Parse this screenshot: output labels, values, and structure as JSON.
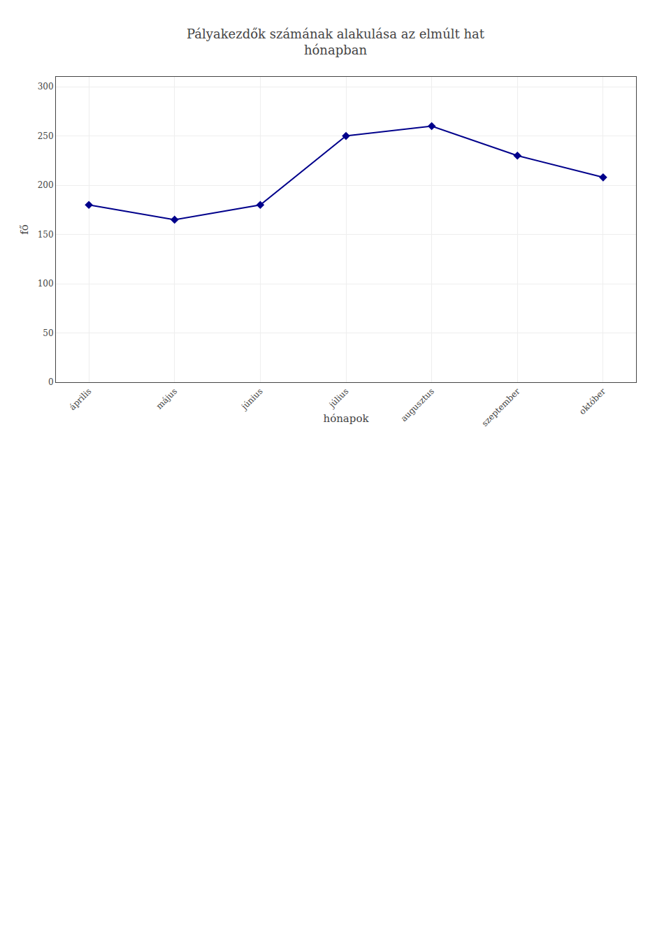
{
  "chart_data": {
    "type": "line",
    "title": "Pályakezdők számának alakulása az elmúlt hat\nhónapban",
    "x_label": "hónapok",
    "y_label": "fő",
    "categories": [
      "április",
      "május",
      "június",
      "július",
      "augusztus",
      "szeptember",
      "október"
    ],
    "values": [
      180,
      165,
      180,
      250,
      260,
      230,
      208
    ],
    "color": "#00008B",
    "marker": "diamond",
    "ylim": [
      0,
      310
    ],
    "yticks": [
      0,
      50,
      100,
      150,
      200,
      250,
      300
    ],
    "grid": true
  }
}
